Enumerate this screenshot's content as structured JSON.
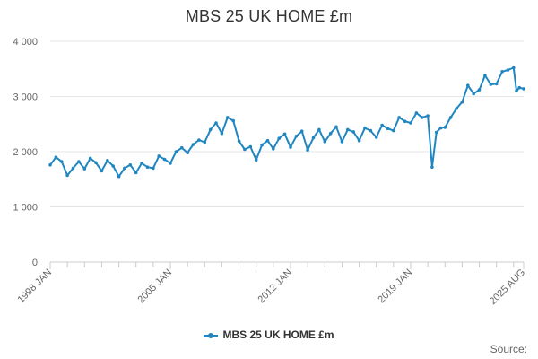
{
  "chart_data": {
    "type": "line",
    "title": "MBS 25 UK HOME £m",
    "xlabel": "",
    "ylabel": "",
    "x_range": [
      "1998-01",
      "2025-08"
    ],
    "x_tick_labels": [
      "1998 JAN",
      "2005 JAN",
      "2012 JAN",
      "2019 JAN",
      "2025 AUG"
    ],
    "x_ticks": [
      "1998-01",
      "2005-01",
      "2012-01",
      "2019-01",
      "2025-08"
    ],
    "ylim": [
      0,
      4000
    ],
    "y_ticks": [
      0,
      1000,
      2000,
      3000,
      4000
    ],
    "y_tick_labels": [
      "0",
      "1 000",
      "2 000",
      "3 000",
      "4 000"
    ],
    "grid": "horizontal",
    "legend": "bottom-center",
    "series": [
      {
        "name": "MBS 25 UK HOME £m",
        "color": "#1f86c1",
        "points": [
          [
            "1998-01",
            1760
          ],
          [
            "1998-05",
            1900
          ],
          [
            "1998-09",
            1820
          ],
          [
            "1999-01",
            1570
          ],
          [
            "1999-05",
            1700
          ],
          [
            "1999-09",
            1820
          ],
          [
            "2000-01",
            1690
          ],
          [
            "2000-05",
            1880
          ],
          [
            "2000-09",
            1800
          ],
          [
            "2001-01",
            1650
          ],
          [
            "2001-05",
            1840
          ],
          [
            "2001-09",
            1740
          ],
          [
            "2002-01",
            1550
          ],
          [
            "2002-05",
            1700
          ],
          [
            "2002-09",
            1760
          ],
          [
            "2003-01",
            1620
          ],
          [
            "2003-05",
            1790
          ],
          [
            "2003-09",
            1720
          ],
          [
            "2004-01",
            1700
          ],
          [
            "2004-05",
            1920
          ],
          [
            "2004-09",
            1860
          ],
          [
            "2005-01",
            1790
          ],
          [
            "2005-05",
            2000
          ],
          [
            "2005-09",
            2070
          ],
          [
            "2006-01",
            1980
          ],
          [
            "2006-05",
            2130
          ],
          [
            "2006-09",
            2210
          ],
          [
            "2007-01",
            2170
          ],
          [
            "2007-05",
            2400
          ],
          [
            "2007-09",
            2520
          ],
          [
            "2008-01",
            2330
          ],
          [
            "2008-05",
            2620
          ],
          [
            "2008-09",
            2560
          ],
          [
            "2009-01",
            2190
          ],
          [
            "2009-05",
            2040
          ],
          [
            "2009-09",
            2090
          ],
          [
            "2010-01",
            1850
          ],
          [
            "2010-05",
            2120
          ],
          [
            "2010-09",
            2200
          ],
          [
            "2011-01",
            2050
          ],
          [
            "2011-05",
            2240
          ],
          [
            "2011-09",
            2320
          ],
          [
            "2012-01",
            2080
          ],
          [
            "2012-05",
            2280
          ],
          [
            "2012-09",
            2370
          ],
          [
            "2013-01",
            2030
          ],
          [
            "2013-05",
            2250
          ],
          [
            "2013-09",
            2400
          ],
          [
            "2014-01",
            2180
          ],
          [
            "2014-05",
            2330
          ],
          [
            "2014-09",
            2450
          ],
          [
            "2015-01",
            2180
          ],
          [
            "2015-05",
            2400
          ],
          [
            "2015-09",
            2360
          ],
          [
            "2016-01",
            2200
          ],
          [
            "2016-05",
            2430
          ],
          [
            "2016-09",
            2380
          ],
          [
            "2017-01",
            2260
          ],
          [
            "2017-05",
            2480
          ],
          [
            "2017-09",
            2420
          ],
          [
            "2018-01",
            2380
          ],
          [
            "2018-05",
            2620
          ],
          [
            "2018-09",
            2550
          ],
          [
            "2019-01",
            2520
          ],
          [
            "2019-05",
            2700
          ],
          [
            "2019-09",
            2620
          ],
          [
            "2020-01",
            2650
          ],
          [
            "2020-04",
            1720
          ],
          [
            "2020-07",
            2350
          ],
          [
            "2020-10",
            2430
          ],
          [
            "2021-01",
            2440
          ],
          [
            "2021-05",
            2620
          ],
          [
            "2021-09",
            2780
          ],
          [
            "2022-01",
            2900
          ],
          [
            "2022-05",
            3200
          ],
          [
            "2022-09",
            3050
          ],
          [
            "2023-01",
            3120
          ],
          [
            "2023-05",
            3380
          ],
          [
            "2023-09",
            3220
          ],
          [
            "2024-01",
            3230
          ],
          [
            "2024-05",
            3450
          ],
          [
            "2024-09",
            3480
          ],
          [
            "2025-01",
            3520
          ],
          [
            "2025-03",
            3100
          ],
          [
            "2025-05",
            3160
          ],
          [
            "2025-08",
            3140
          ]
        ]
      }
    ]
  },
  "source_label": "Source:"
}
